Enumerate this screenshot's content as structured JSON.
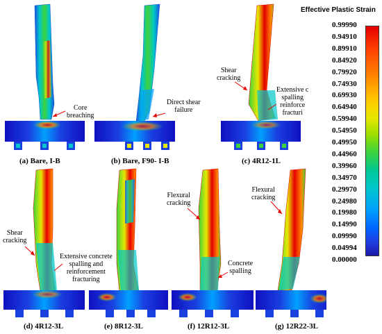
{
  "legend": {
    "title": "Effective Plastic Strain",
    "ticks": [
      "0.99990",
      "0.94910",
      "0.89910",
      "0.84920",
      "0.79920",
      "0.74930",
      "0.69930",
      "0.64940",
      "0.59940",
      "0.54950",
      "0.49950",
      "0.44960",
      "0.39960",
      "0.34970",
      "0.29970",
      "0.24980",
      "0.19980",
      "0.14990",
      "0.09990",
      "0.04994",
      "0.00000"
    ],
    "colors": {
      "max": "#e60000",
      "high": "#ff8800",
      "mid_high": "#e8e800",
      "mid": "#3cd23c",
      "mid_low": "#00c8c8",
      "low": "#0064ff",
      "min": "#1a1aa6"
    }
  },
  "panels": [
    {
      "caption": "(a) Bare, I-B",
      "annotations": [
        {
          "text": "Core\nbreaching"
        }
      ]
    },
    {
      "caption": "(b) Bare, F90- I-B",
      "annotations": [
        {
          "text": "Direct shear\nfailure"
        }
      ]
    },
    {
      "caption": "(c) 4R12-1L",
      "annotations": [
        {
          "text": "Shear\ncracking"
        },
        {
          "text": "Extensive c\nspalling\nreinforce\nfracturi"
        }
      ]
    },
    {
      "caption": "(d) 4R12-3L",
      "annotations": [
        {
          "text": "Shear\ncracking"
        },
        {
          "text": "Extensive concrete\nspalling and\nreinforcement\nfracturing"
        }
      ]
    },
    {
      "caption": "(e) 8R12-3L",
      "annotations": []
    },
    {
      "caption": "(f) 12R12-3L",
      "annotations": [
        {
          "text": "Flexural\ncracking"
        },
        {
          "text": "Concrete\nspalling"
        }
      ]
    },
    {
      "caption": "(g) 12R22-3L",
      "annotations": [
        {
          "text": "Flexural\ncracking"
        }
      ]
    }
  ]
}
